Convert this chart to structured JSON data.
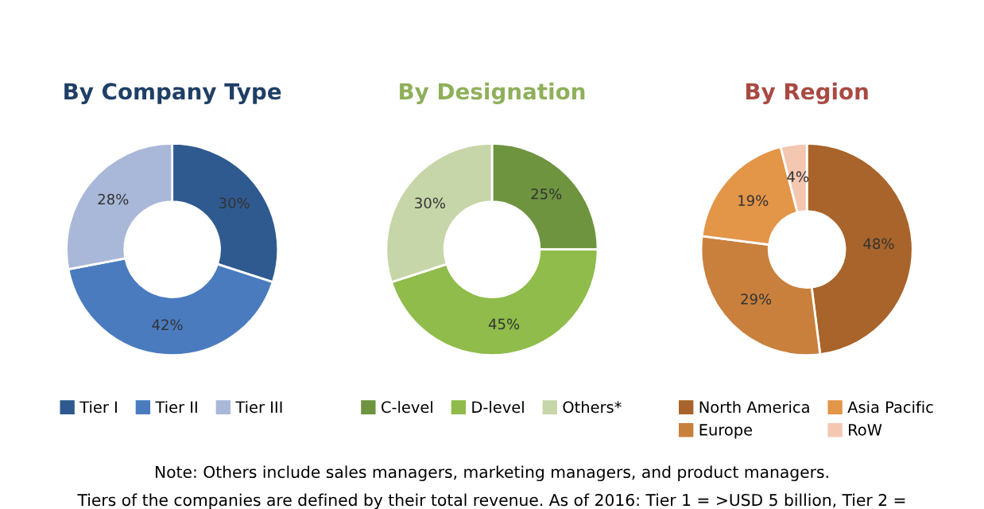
{
  "chart_data": [
    {
      "type": "donut",
      "title": "By Company Type",
      "categories": [
        "Tier I",
        "Tier II",
        "Tier III"
      ],
      "values": [
        30,
        42,
        28
      ],
      "value_labels": [
        "30%",
        "42%",
        "28%"
      ],
      "colors": [
        "#2f5a8f",
        "#4a7bbf",
        "#a9b8d8"
      ],
      "legend": "bottom",
      "annotations": [
        "Note: Others include sales managers, marketing managers, and product managers.",
        "Tiers of the companies are defined by their total revenue. As of 2016: Tier 1 = >USD 5 billion, Tier 2 ="
      ]
    },
    {
      "type": "donut",
      "title": "By Designation",
      "categories": [
        "C-level",
        "D-level",
        "Others*"
      ],
      "values": [
        25,
        45,
        30
      ],
      "value_labels": [
        "25%",
        "45%",
        "30%"
      ],
      "colors": [
        "#6e9440",
        "#8fbc4a",
        "#c6d6a8"
      ],
      "legend": "bottom"
    },
    {
      "type": "donut",
      "title": "By Region",
      "categories": [
        "North America",
        "Europe",
        "Asia Pacific",
        "RoW"
      ],
      "values": [
        48,
        29,
        19,
        4
      ],
      "value_labels": [
        "48%",
        "29%",
        "19%",
        "4%"
      ],
      "colors": [
        "#a8642a",
        "#c9803c",
        "#e39548",
        "#f4c7b0"
      ],
      "legend": "bottom"
    }
  ]
}
